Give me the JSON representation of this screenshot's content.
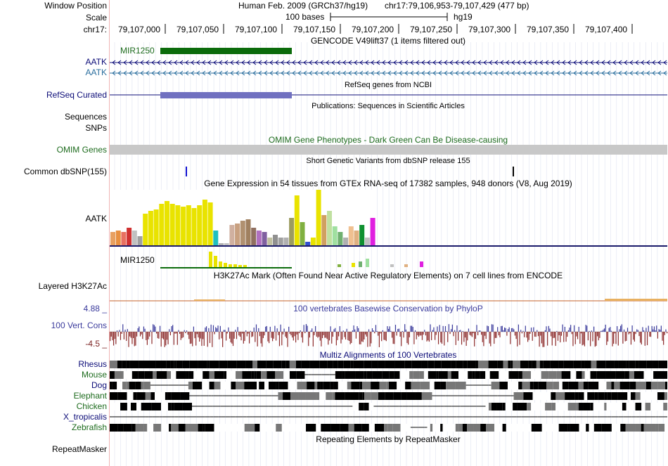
{
  "header": {
    "window_position_label": "Window Position",
    "scale_label": "Scale",
    "chrom_label": "chr17:",
    "assembly": "Human Feb. 2009 (GRCh37/hg19)",
    "position": "chr17:79,106,953-79,107,429 (477 bp)",
    "scale_bar_text": "100 bases",
    "scale_db": "hg19",
    "ruler_ticks": [
      "79,107,000",
      "79,107,050",
      "79,107,100",
      "79,107,150",
      "79,107,200",
      "79,107,250",
      "79,107,300",
      "79,107,350",
      "79,107,400"
    ]
  },
  "tracks": {
    "gencode": {
      "title": "GENCODE V49lift37 (1 items filtered out)",
      "item_label": "MIR1250",
      "gene1": "AATK",
      "gene2": "AATK"
    },
    "refseq": {
      "label": "RefSeq Curated",
      "title": "RefSeq genes from NCBI"
    },
    "publications": {
      "label": "Sequences",
      "title": "Publications: Sequences in Scientific Articles"
    },
    "snps": {
      "label": "SNPs"
    },
    "omim": {
      "label": "OMIM Genes",
      "title": "OMIM Gene Phenotypes - Dark Green Can Be Disease-causing"
    },
    "dbsnp": {
      "label": "Common dbSNP(155)",
      "title": "Short Genetic Variants from dbSNP release 155"
    },
    "gtex": {
      "title": "Gene Expression in 54 tissues from GTEx RNA-seq of 17382 samples, 948 donors (V8, Aug 2019)",
      "gene1": "AATK",
      "gene2": "MIR1250"
    },
    "h3k27ac": {
      "label": "Layered H3K27Ac",
      "title": "H3K27Ac Mark (Often Found Near Active Regulatory Elements) on 7 cell lines from ENCODE"
    },
    "phylop": {
      "label": "100 Vert. Cons",
      "title": "100 vertebrates Basewise Conservation by PhyloP",
      "max": "4.88 _",
      "min": "-4.5 _"
    },
    "multiz": {
      "title": "Multiz Alignments of 100 Vertebrates",
      "species": [
        "Rhesus",
        "Mouse",
        "Dog",
        "Elephant",
        "Chicken",
        "X_tropicalis",
        "Zebrafish"
      ]
    },
    "repeatmasker": {
      "label": "RepeatMasker",
      "title": "Repeating Elements by RepeatMasker"
    }
  },
  "colors": {
    "gencode_green": "#0b6b0b",
    "refseq_purple": "#7070c0",
    "gene_navy": "#0c0c78",
    "omim_gray": "#c8c8c8",
    "gtex_yellow": "#e9e300",
    "phylop_blue": "#3a3a9c",
    "phylop_red": "#8c2a2a"
  }
}
